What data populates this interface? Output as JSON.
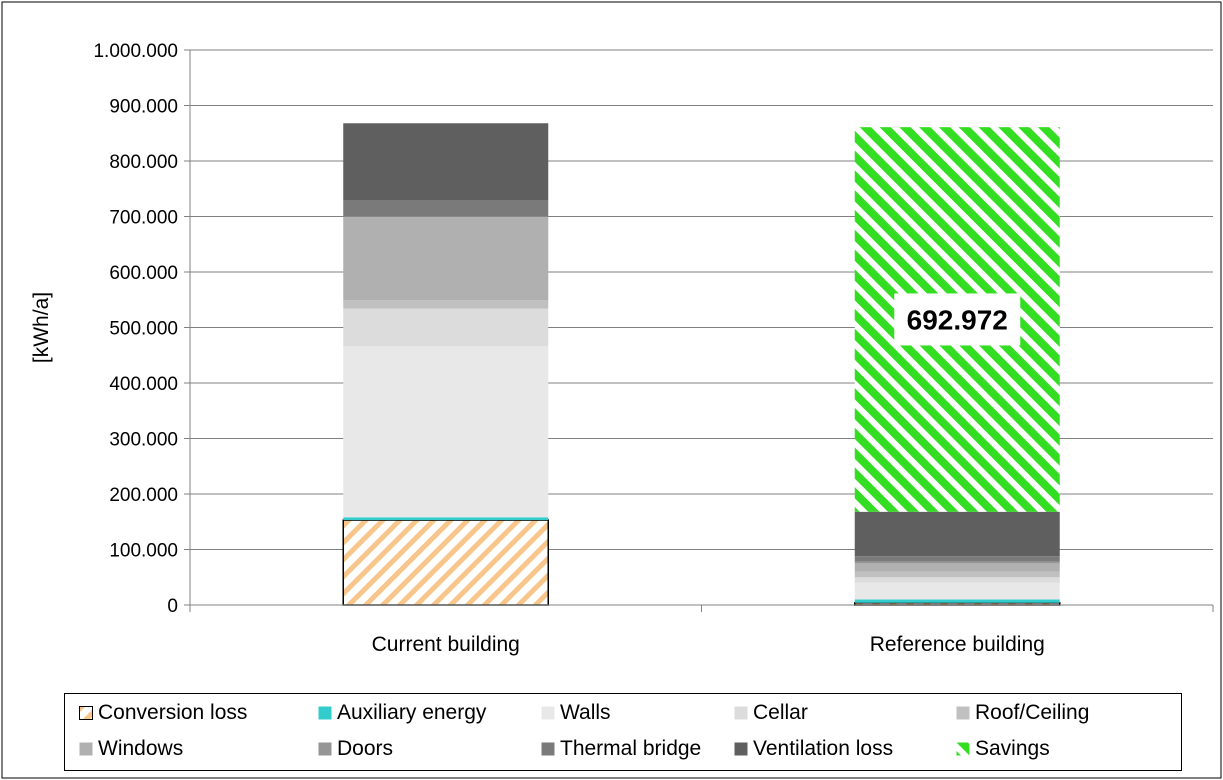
{
  "chart_data": {
    "type": "bar",
    "stacked": true,
    "categories": [
      "Current building",
      "Reference building"
    ],
    "ylabel": "[kWh/a]",
    "ylim": [
      0,
      1000000
    ],
    "yticks": [
      0,
      100000,
      200000,
      300000,
      400000,
      500000,
      600000,
      700000,
      800000,
      900000,
      1000000
    ],
    "ytick_labels": [
      "0",
      "100.000",
      "200.000",
      "300.000",
      "400.000",
      "500.000",
      "600.000",
      "700.000",
      "800.000",
      "900.000",
      "1.000.000"
    ],
    "grid": true,
    "legend_position": "bottom",
    "series": [
      {
        "name": "Conversion loss",
        "color": "#f8c58a",
        "pattern": "hatch-orange",
        "values": [
          153000,
          4000
        ]
      },
      {
        "name": "Auxiliary energy",
        "color": "#33cccc",
        "values": [
          5000,
          6000
        ]
      },
      {
        "name": "Walls",
        "color": "#e8e8e8",
        "values": [
          308000,
          30000
        ]
      },
      {
        "name": "Cellar",
        "color": "#dcdcdc",
        "values": [
          68000,
          10000
        ]
      },
      {
        "name": "Roof/Ceiling",
        "color": "#c0c0c0",
        "values": [
          15000,
          10000
        ]
      },
      {
        "name": "Windows",
        "color": "#b0b0b0",
        "values": [
          150000,
          15000
        ]
      },
      {
        "name": "Doors",
        "color": "#969696",
        "values": [
          1000,
          3000
        ]
      },
      {
        "name": "Thermal bridge",
        "color": "#7a7a7a",
        "values": [
          29000,
          10000
        ]
      },
      {
        "name": "Ventilation loss",
        "color": "#5f5f5f",
        "values": [
          139000,
          80000
        ]
      },
      {
        "name": "Savings",
        "color": "#33dd22",
        "pattern": "hatch-green",
        "values": [
          0,
          692972
        ]
      }
    ],
    "data_labels": [
      {
        "category": "Reference building",
        "series": "Savings",
        "text": "692.972"
      }
    ]
  }
}
